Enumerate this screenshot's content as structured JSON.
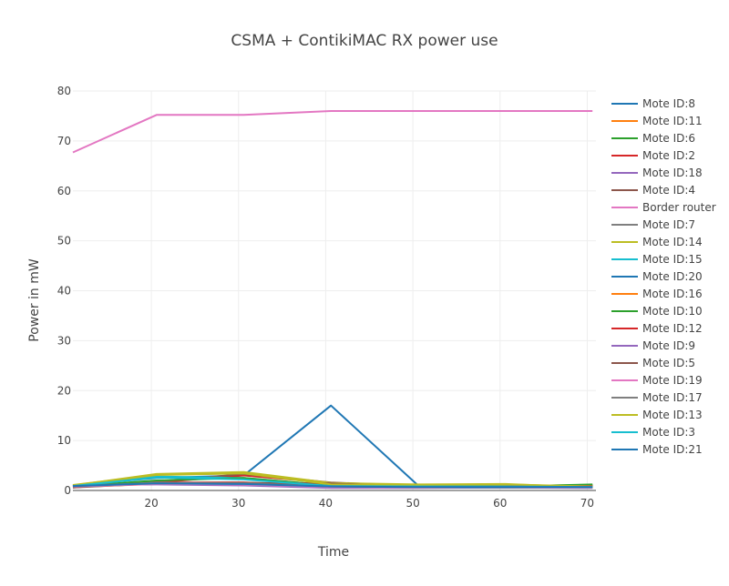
{
  "chart_data": {
    "type": "line",
    "title": "CSMA + ContikiMAC RX power use",
    "xlabel": "Time",
    "ylabel": "Power in mW",
    "xlim": [
      11,
      71
    ],
    "ylim": [
      0,
      80
    ],
    "xticks": [
      20,
      30,
      40,
      50,
      60,
      70
    ],
    "yticks": [
      0,
      10,
      20,
      30,
      40,
      50,
      60,
      70,
      80
    ],
    "grid": true,
    "legend_position": "right",
    "x": [
      11,
      20.6,
      30.6,
      40.6,
      50.6,
      60.6,
      70.6
    ],
    "series": [
      {
        "name": "Mote ID:8",
        "color": "#1f77b4",
        "values": [
          1.0,
          2.5,
          3.0,
          17.0,
          1.0,
          0.9,
          0.9
        ]
      },
      {
        "name": "Mote ID:11",
        "color": "#ff7f0e",
        "values": [
          0.7,
          1.3,
          1.2,
          0.8,
          0.6,
          0.6,
          0.6
        ]
      },
      {
        "name": "Mote ID:6",
        "color": "#2ca02c",
        "values": [
          0.8,
          1.5,
          1.3,
          0.9,
          0.7,
          0.8,
          1.2
        ]
      },
      {
        "name": "Mote ID:2",
        "color": "#d62728",
        "values": [
          0.7,
          1.6,
          3.0,
          1.5,
          0.8,
          0.7,
          1.0
        ]
      },
      {
        "name": "Mote ID:18",
        "color": "#9467bd",
        "values": [
          1.1,
          1.2,
          1.0,
          0.5,
          0.5,
          0.6,
          0.5
        ]
      },
      {
        "name": "Mote ID:4",
        "color": "#8c564b",
        "values": [
          0.6,
          1.8,
          3.3,
          1.6,
          0.9,
          0.8,
          0.8
        ]
      },
      {
        "name": "Border router",
        "color": "#e377c2",
        "values": [
          67.7,
          75.2,
          75.2,
          76.0,
          76.0,
          76.0,
          76.0
        ]
      },
      {
        "name": "Mote ID:7",
        "color": "#7f7f7f",
        "values": [
          0.9,
          1.6,
          1.6,
          1.0,
          0.7,
          0.7,
          0.8
        ]
      },
      {
        "name": "Mote ID:14",
        "color": "#bcbd22",
        "values": [
          1.0,
          3.3,
          3.7,
          1.5,
          1.2,
          1.3,
          0.6
        ]
      },
      {
        "name": "Mote ID:15",
        "color": "#17becf",
        "values": [
          0.8,
          2.8,
          2.5,
          1.0,
          0.8,
          0.8,
          0.7
        ]
      },
      {
        "name": "Mote ID:20",
        "color": "#1f77b4",
        "values": [
          0.9,
          1.4,
          1.2,
          0.7,
          0.6,
          0.6,
          0.7
        ]
      },
      {
        "name": "Mote ID:16",
        "color": "#ff7f0e",
        "values": [
          0.8,
          1.5,
          1.4,
          0.8,
          0.6,
          0.7,
          0.7
        ]
      },
      {
        "name": "Mote ID:10",
        "color": "#2ca02c",
        "values": [
          0.8,
          2.0,
          2.5,
          1.0,
          0.8,
          0.9,
          1.1
        ]
      },
      {
        "name": "Mote ID:12",
        "color": "#d62728",
        "values": [
          0.7,
          1.5,
          1.6,
          0.9,
          0.7,
          0.8,
          0.9
        ]
      },
      {
        "name": "Mote ID:9",
        "color": "#9467bd",
        "values": [
          1.0,
          1.3,
          1.1,
          0.6,
          0.6,
          0.7,
          0.6
        ]
      },
      {
        "name": "Mote ID:5",
        "color": "#8c564b",
        "values": [
          0.6,
          1.4,
          1.5,
          1.4,
          0.8,
          0.7,
          0.7
        ]
      },
      {
        "name": "Mote ID:19",
        "color": "#e377c2",
        "values": [
          0.8,
          1.3,
          1.2,
          0.7,
          0.6,
          0.7,
          0.6
        ]
      },
      {
        "name": "Mote ID:17",
        "color": "#7f7f7f",
        "values": [
          0.9,
          1.5,
          1.4,
          0.8,
          0.7,
          0.7,
          0.7
        ]
      },
      {
        "name": "Mote ID:13",
        "color": "#bcbd22",
        "values": [
          1.1,
          3.1,
          3.4,
          1.2,
          1.1,
          1.2,
          0.8
        ]
      },
      {
        "name": "Mote ID:3",
        "color": "#17becf",
        "values": [
          0.9,
          2.6,
          2.2,
          0.9,
          0.8,
          0.8,
          0.7
        ]
      },
      {
        "name": "Mote ID:21",
        "color": "#1f77b4",
        "values": [
          0.9,
          1.4,
          1.3,
          0.8,
          0.7,
          0.7,
          0.7
        ]
      }
    ]
  }
}
